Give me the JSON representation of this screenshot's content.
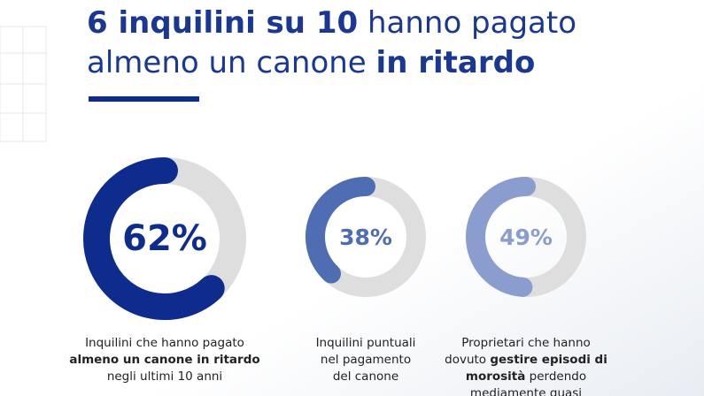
{
  "header": {
    "title": [
      [
        {
          "text": "6 inquilini su 10",
          "bold": true
        },
        {
          "text": " hanno pagato",
          "bold": false
        }
      ],
      [
        {
          "text": "almeno un canone ",
          "bold": false
        },
        {
          "text": "in ritardo",
          "bold": true
        }
      ]
    ]
  },
  "gauges": [
    {
      "value": 62,
      "value_label": "62%",
      "color": "#0e2c8e",
      "caption": [
        [
          {
            "text": "Inquilini che hanno pagato",
            "bold": false
          }
        ],
        [
          {
            "text": "almeno un canone in ritardo",
            "bold": true
          }
        ],
        [
          {
            "text": "negli ultimi 10 anni",
            "bold": false
          }
        ]
      ]
    },
    {
      "value": 38,
      "value_label": "38%",
      "color": "#4f6db3",
      "caption": [
        [
          {
            "text": "Inquilini puntuali",
            "bold": false
          }
        ],
        [
          {
            "text": "nel pagamento",
            "bold": false
          }
        ],
        [
          {
            "text": "del canone",
            "bold": false
          }
        ]
      ]
    },
    {
      "value": 49,
      "value_label": "49%",
      "color": "#8a9dce",
      "caption": [
        [
          {
            "text": "Proprietari che hanno",
            "bold": false
          }
        ],
        [
          {
            "text": "dovuto ",
            "bold": false
          },
          {
            "text": "gestire episodi di",
            "bold": true
          }
        ],
        [
          {
            "text": "morosità",
            "bold": true
          },
          {
            "text": " perdendo",
            "bold": false
          }
        ],
        [
          {
            "text": "mediamente quasi",
            "bold": false
          }
        ]
      ]
    }
  ]
}
